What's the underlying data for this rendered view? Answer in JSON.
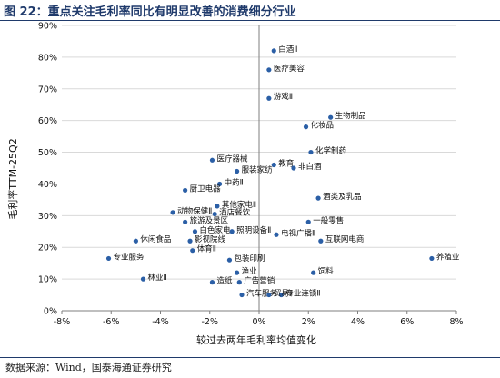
{
  "figure": {
    "title": "图 22：重点关注毛利率同比有明显改善的消费细分行业",
    "source": "数据来源：Wind，国泰海通证券研究"
  },
  "colors": {
    "point": "#2b5fa6",
    "grid": "#d9d9d9",
    "axis": "#7f7f7f",
    "title": "#1f3a6b"
  },
  "chart_data": {
    "type": "scatter",
    "xlabel": "较过去两年毛利率均值变化",
    "ylabel": "毛利率TTM-25Q2",
    "xlim": [
      -0.08,
      0.08
    ],
    "ylim": [
      0,
      0.9
    ],
    "xticks": [
      -0.08,
      -0.06,
      -0.04,
      -0.02,
      0,
      0.02,
      0.04,
      0.06,
      0.08
    ],
    "xtick_labels": [
      "-8%",
      "-6%",
      "-4%",
      "-2%",
      "0%",
      "2%",
      "4%",
      "6%",
      "8%"
    ],
    "yticks": [
      0,
      0.1,
      0.2,
      0.3,
      0.4,
      0.5,
      0.6,
      0.7,
      0.8,
      0.9
    ],
    "ytick_labels": [
      "0%",
      "10%",
      "20%",
      "30%",
      "40%",
      "50%",
      "60%",
      "70%",
      "80%",
      "90%"
    ],
    "grid": true,
    "points": [
      {
        "label": "白酒Ⅱ",
        "x": 0.006,
        "y": 0.82
      },
      {
        "label": "医疗美容",
        "x": 0.004,
        "y": 0.76
      },
      {
        "label": "游戏Ⅱ",
        "x": 0.004,
        "y": 0.67
      },
      {
        "label": "生物制品",
        "x": 0.029,
        "y": 0.61
      },
      {
        "label": "化妆品",
        "x": 0.019,
        "y": 0.58
      },
      {
        "label": "化学制药",
        "x": 0.021,
        "y": 0.5
      },
      {
        "label": "医疗器械",
        "x": -0.019,
        "y": 0.475
      },
      {
        "label": "教育",
        "x": 0.006,
        "y": 0.46
      },
      {
        "label": "非白酒",
        "x": 0.014,
        "y": 0.45
      },
      {
        "label": "服装家纺",
        "x": -0.009,
        "y": 0.44
      },
      {
        "label": "中药Ⅱ",
        "x": -0.016,
        "y": 0.4
      },
      {
        "label": "厨卫电器",
        "x": -0.03,
        "y": 0.38
      },
      {
        "label": "酒类及乳品",
        "x": 0.024,
        "y": 0.355
      },
      {
        "label": "其他家电Ⅱ",
        "x": -0.017,
        "y": 0.33
      },
      {
        "label": "动物保健Ⅱ",
        "x": -0.035,
        "y": 0.31
      },
      {
        "label": "酒店餐饮",
        "x": -0.018,
        "y": 0.305
      },
      {
        "label": "旅游及景区",
        "x": -0.03,
        "y": 0.28
      },
      {
        "label": "一般零售",
        "x": 0.02,
        "y": 0.28
      },
      {
        "label": "白色家电",
        "x": -0.026,
        "y": 0.25
      },
      {
        "label": "照明设备Ⅱ",
        "x": -0.011,
        "y": 0.25
      },
      {
        "label": "电视广播Ⅱ",
        "x": 0.007,
        "y": 0.24
      },
      {
        "label": "休闲食品",
        "x": -0.05,
        "y": 0.22
      },
      {
        "label": "影视院线",
        "x": -0.028,
        "y": 0.22
      },
      {
        "label": "互联网电商",
        "x": 0.025,
        "y": 0.22
      },
      {
        "label": "体育Ⅱ",
        "x": -0.027,
        "y": 0.19
      },
      {
        "label": "包装印刷",
        "x": -0.012,
        "y": 0.16
      },
      {
        "label": "专业服务",
        "x": -0.061,
        "y": 0.165
      },
      {
        "label": "养殖业",
        "x": 0.07,
        "y": 0.165
      },
      {
        "label": "林业Ⅱ",
        "x": -0.047,
        "y": 0.1
      },
      {
        "label": "渔业",
        "x": -0.009,
        "y": 0.12
      },
      {
        "label": "饲料",
        "x": 0.022,
        "y": 0.12
      },
      {
        "label": "造纸",
        "x": -0.019,
        "y": 0.09
      },
      {
        "label": "广告营销",
        "x": -0.008,
        "y": 0.09
      },
      {
        "label": "汽车服务",
        "x": -0.007,
        "y": 0.05
      },
      {
        "label": "专业连锁Ⅱ",
        "x": 0.009,
        "y": 0.05
      },
      {
        "label": "贸易Ⅱ",
        "x": 0.004,
        "y": 0.05
      }
    ]
  }
}
